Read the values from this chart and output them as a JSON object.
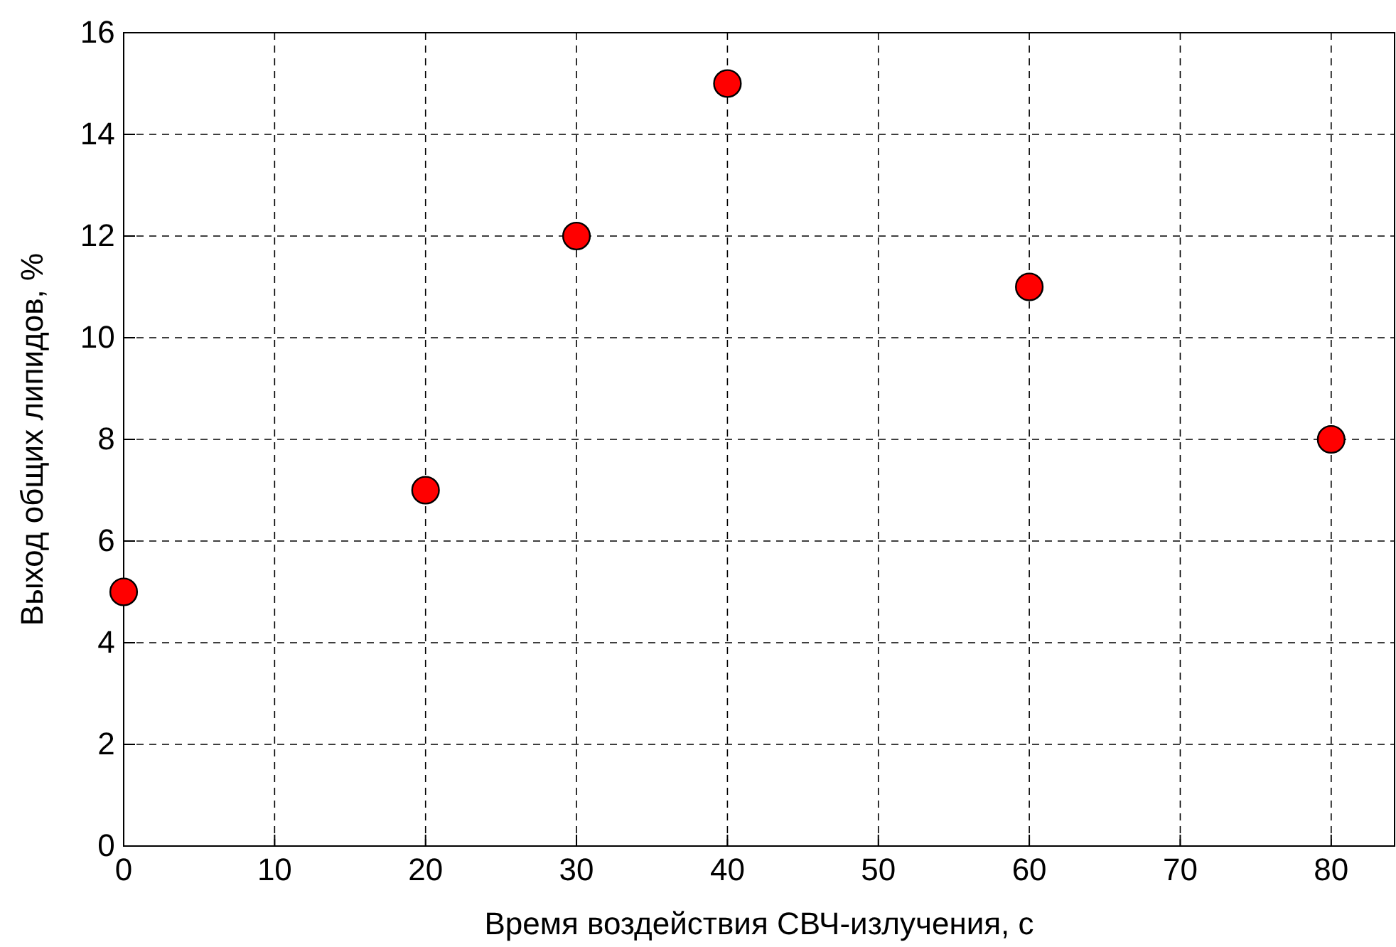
{
  "chart_data": {
    "type": "scatter",
    "xlabel": "Время воздействия СВЧ-излучения, с",
    "ylabel": "Выход общих липидов, %",
    "x": [
      0,
      20,
      30,
      40,
      60,
      80
    ],
    "series": [
      {
        "color": "#ff0000",
        "values": [
          5,
          7,
          12,
          15,
          11,
          8
        ]
      }
    ],
    "xlim": [
      0,
      84.2
    ],
    "xticks": [
      0,
      10,
      20,
      30,
      40,
      50,
      60,
      70,
      80
    ],
    "ylim": [
      0,
      16
    ],
    "yticks": [
      0,
      2,
      4,
      6,
      8,
      10,
      12,
      14,
      16
    ],
    "grid": true,
    "marker": "circle"
  }
}
